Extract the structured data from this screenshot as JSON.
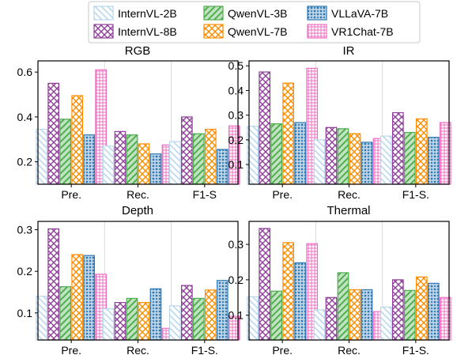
{
  "legend": {
    "items": [
      {
        "name": "InternVL-2B",
        "color": "#b9d7ec",
        "pattern": "diag-back"
      },
      {
        "name": "QwenVL-3B",
        "color": "#4fae4e",
        "pattern": "diag-fwd"
      },
      {
        "name": "VLLaVA-7B",
        "color": "#2f79b5",
        "pattern": "dots"
      },
      {
        "name": "InternVL-8B",
        "color": "#8e3f98",
        "pattern": "cross"
      },
      {
        "name": "QwenVL-7B",
        "color": "#ff8c00",
        "pattern": "cross"
      },
      {
        "name": "VR1Chat-7B",
        "color": "#f06fc3",
        "pattern": "grid"
      }
    ]
  },
  "chart_data": [
    {
      "type": "bar",
      "title": "RGB",
      "categories": [
        "Pre.",
        "Rec.",
        "F1-S"
      ],
      "yticks": [
        "0.2",
        "0.4",
        "0.6"
      ],
      "ylim": [
        0.1,
        0.65
      ],
      "series": [
        {
          "name": "InternVL-2B",
          "values": [
            0.345,
            0.27,
            0.29
          ]
        },
        {
          "name": "InternVL-8B",
          "values": [
            0.55,
            0.335,
            0.4
          ]
        },
        {
          "name": "QwenVL-3B",
          "values": [
            0.39,
            0.32,
            0.325
          ]
        },
        {
          "name": "QwenVL-7B",
          "values": [
            0.495,
            0.28,
            0.345
          ]
        },
        {
          "name": "VLLaVA-7B",
          "values": [
            0.32,
            0.235,
            0.255
          ]
        },
        {
          "name": "VR1Chat-7B",
          "values": [
            0.61,
            0.275,
            0.36
          ]
        }
      ]
    },
    {
      "type": "bar",
      "title": "IR",
      "categories": [
        "Pre.",
        "Rec.",
        "F1-S."
      ],
      "yticks": [
        "0.1",
        "0.2",
        "0.3",
        "0.4",
        "0.5"
      ],
      "ylim": [
        0.02,
        0.52
      ],
      "series": [
        {
          "name": "InternVL-2B",
          "values": [
            0.255,
            0.2,
            0.215
          ]
        },
        {
          "name": "InternVL-8B",
          "values": [
            0.475,
            0.25,
            0.31
          ]
        },
        {
          "name": "QwenVL-3B",
          "values": [
            0.265,
            0.245,
            0.23
          ]
        },
        {
          "name": "QwenVL-7B",
          "values": [
            0.43,
            0.225,
            0.285
          ]
        },
        {
          "name": "VLLaVA-7B",
          "values": [
            0.27,
            0.19,
            0.21
          ]
        },
        {
          "name": "VR1Chat-7B",
          "values": [
            0.49,
            0.205,
            0.27
          ]
        }
      ]
    },
    {
      "type": "bar",
      "title": "Depth",
      "categories": [
        "Pre.",
        "Rec.",
        "F1-S."
      ],
      "yticks": [
        "0.1",
        "0.2",
        "0.3"
      ],
      "ylim": [
        0.035,
        0.32
      ],
      "series": [
        {
          "name": "InternVL-2B",
          "values": [
            0.14,
            0.11,
            0.117
          ]
        },
        {
          "name": "InternVL-8B",
          "values": [
            0.302,
            0.125,
            0.166
          ]
        },
        {
          "name": "QwenVL-3B",
          "values": [
            0.163,
            0.135,
            0.135
          ]
        },
        {
          "name": "QwenVL-7B",
          "values": [
            0.24,
            0.125,
            0.155
          ]
        },
        {
          "name": "VLLaVA-7B",
          "values": [
            0.238,
            0.158,
            0.178
          ]
        },
        {
          "name": "VR1Chat-7B",
          "values": [
            0.193,
            0.063,
            0.092
          ]
        }
      ]
    },
    {
      "type": "bar",
      "title": "Thermal",
      "categories": [
        "Pre.",
        "Rec.",
        "F1-S."
      ],
      "yticks": [
        "0.1",
        "0.2",
        "0.3"
      ],
      "ylim": [
        0.03,
        0.365
      ],
      "series": [
        {
          "name": "InternVL-2B",
          "values": [
            0.152,
            0.115,
            0.123
          ]
        },
        {
          "name": "InternVL-8B",
          "values": [
            0.345,
            0.15,
            0.2
          ]
        },
        {
          "name": "QwenVL-3B",
          "values": [
            0.168,
            0.22,
            0.17
          ]
        },
        {
          "name": "QwenVL-7B",
          "values": [
            0.305,
            0.172,
            0.208
          ]
        },
        {
          "name": "VLLaVA-7B",
          "values": [
            0.248,
            0.172,
            0.19
          ]
        },
        {
          "name": "VR1Chat-7B",
          "values": [
            0.302,
            0.11,
            0.15
          ]
        }
      ]
    }
  ]
}
